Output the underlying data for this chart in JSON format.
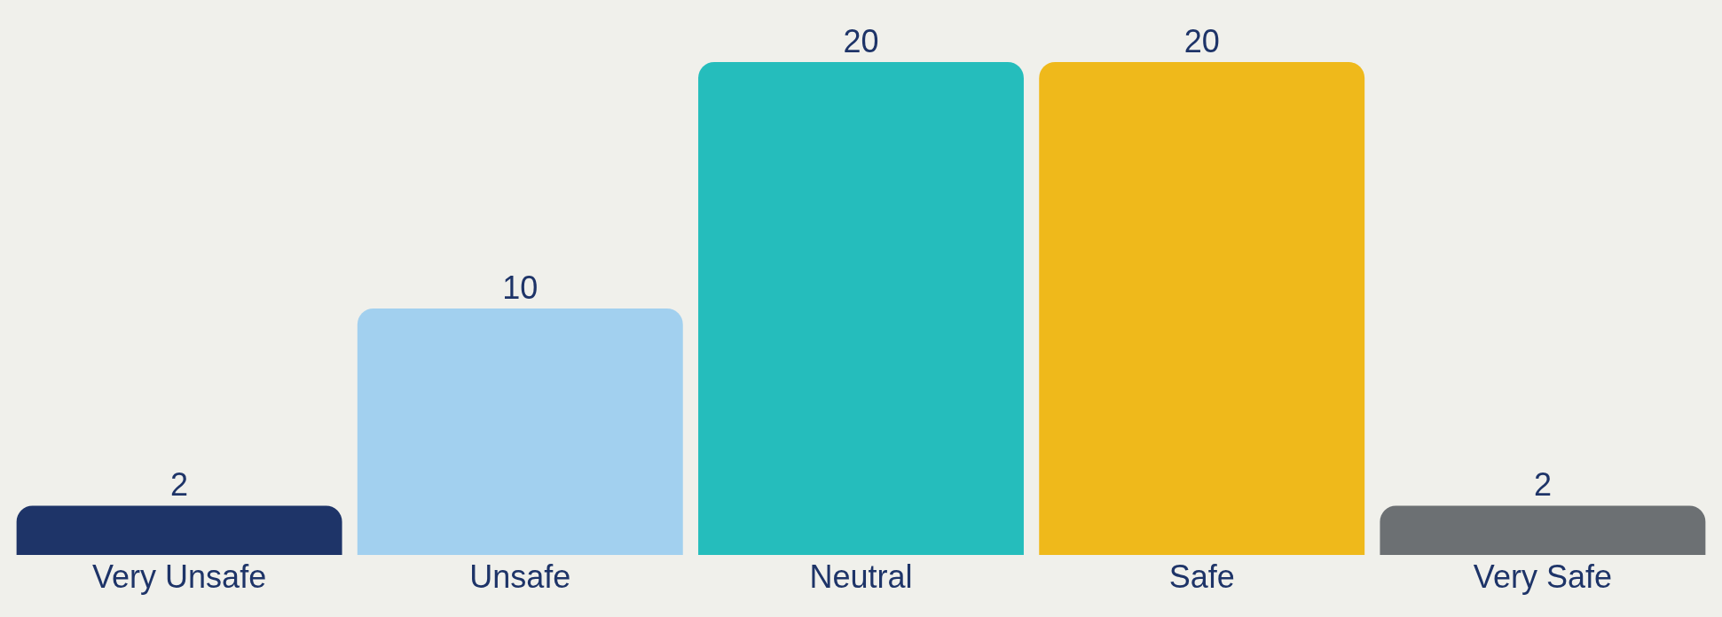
{
  "chart_data": {
    "type": "bar",
    "categories": [
      "Very Unsafe",
      "Unsafe",
      "Neutral",
      "Safe",
      "Very Safe"
    ],
    "values": [
      2,
      10,
      20,
      20,
      2
    ],
    "colors": [
      "#1e3468",
      "#a2d0ef",
      "#25bdbc",
      "#efb91b",
      "#6c7073"
    ],
    "data_labels": true,
    "grid": false,
    "legend": false
  }
}
